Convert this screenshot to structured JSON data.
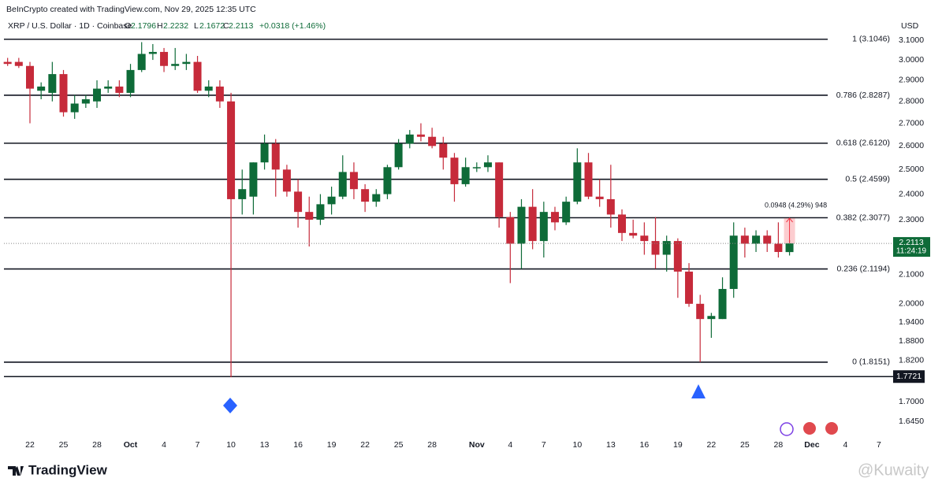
{
  "chart_data": {
    "type": "candlestick",
    "credit": "BeInCrypto created with TradingView.com, Nov 29, 2025 12:35 UTC",
    "symbol": "XRP / U.S. Dollar · 1D · Coinbase",
    "ohlc_labels": [
      "O",
      "H",
      "L",
      "C"
    ],
    "change": "+0.0318 (+1.46%)",
    "currency": "USD",
    "categories": [
      null,
      null,
      "22",
      null,
      null,
      "25",
      null,
      null,
      "28",
      null,
      null,
      "Oct",
      null,
      null,
      "4",
      null,
      null,
      "7",
      null,
      null,
      "10",
      null,
      null,
      "13",
      null,
      null,
      "16",
      null,
      null,
      "19",
      null,
      null,
      "22",
      null,
      null,
      "25",
      null,
      null,
      "28",
      null,
      null,
      null,
      "Nov",
      null,
      null,
      "4",
      null,
      null,
      "7",
      null,
      null,
      "10",
      null,
      null,
      "13",
      null,
      null,
      "16",
      null,
      null,
      "19",
      null,
      null,
      "22",
      null,
      null,
      "25",
      null,
      null,
      "28",
      null,
      null,
      "Dec",
      null,
      null,
      "4",
      null,
      null,
      "7"
    ],
    "open": [
      2.99,
      2.99,
      2.97,
      2.85,
      2.84,
      2.93,
      2.75,
      2.79,
      2.8,
      2.86,
      2.87,
      2.84,
      2.95,
      3.03,
      3.04,
      2.97,
      2.98,
      2.99,
      2.85,
      2.87,
      2.8,
      2.38,
      2.39,
      2.53,
      2.61,
      2.5,
      2.41,
      2.33,
      2.3,
      2.36,
      2.39,
      2.49,
      2.42,
      2.37,
      2.4,
      2.51,
      2.61,
      2.65,
      2.64,
      2.61,
      2.55,
      2.44,
      2.51,
      2.51,
      2.53,
      2.31,
      2.21,
      2.35,
      2.22,
      2.33,
      2.29,
      2.37,
      2.53,
      2.39,
      2.38,
      2.32,
      2.25,
      2.24,
      2.22,
      2.17,
      2.22,
      2.11,
      2.0,
      1.95,
      1.95,
      2.05,
      2.24,
      2.21,
      2.24,
      2.21,
      2.1796,
      null,
      null,
      null,
      null,
      null,
      null,
      null,
      null
    ],
    "high": [
      3.01,
      3.01,
      2.99,
      2.89,
      2.99,
      2.95,
      2.83,
      2.83,
      2.9,
      2.9,
      2.9,
      2.98,
      3.09,
      3.08,
      3.06,
      3.06,
      3.03,
      3.02,
      2.9,
      2.9,
      2.84,
      2.5,
      2.53,
      2.65,
      2.63,
      2.52,
      2.46,
      2.39,
      2.4,
      2.43,
      2.56,
      2.53,
      2.44,
      2.42,
      2.52,
      2.63,
      2.67,
      2.7,
      2.68,
      2.64,
      2.57,
      2.55,
      2.53,
      2.56,
      2.53,
      2.33,
      2.38,
      2.42,
      2.37,
      2.35,
      2.39,
      2.59,
      2.57,
      2.46,
      2.52,
      2.34,
      2.3,
      2.29,
      2.31,
      2.24,
      2.23,
      2.14,
      2.03,
      1.97,
      2.09,
      2.29,
      2.27,
      2.26,
      2.26,
      2.29,
      2.2232,
      null,
      null,
      null,
      null,
      null,
      null,
      null,
      null
    ],
    "low": [
      2.97,
      2.96,
      2.7,
      2.81,
      2.8,
      2.73,
      2.72,
      2.77,
      2.77,
      2.84,
      2.82,
      2.82,
      2.94,
      3.0,
      2.94,
      2.95,
      2.95,
      2.84,
      2.82,
      2.77,
      1.77,
      2.32,
      2.32,
      2.5,
      2.39,
      2.39,
      2.27,
      2.2,
      2.28,
      2.32,
      2.38,
      2.38,
      2.33,
      2.35,
      2.38,
      2.5,
      2.59,
      2.62,
      2.59,
      2.5,
      2.37,
      2.43,
      2.49,
      2.49,
      2.27,
      2.07,
      2.12,
      2.19,
      2.16,
      2.26,
      2.28,
      2.36,
      2.38,
      2.35,
      2.27,
      2.22,
      2.23,
      2.17,
      2.12,
      2.11,
      2.02,
      1.99,
      1.815,
      1.89,
      1.95,
      2.02,
      2.16,
      2.18,
      2.18,
      2.16,
      2.1672,
      null,
      null,
      null,
      null,
      null,
      null,
      null,
      null
    ],
    "close": [
      2.98,
      2.97,
      2.86,
      2.87,
      2.93,
      2.75,
      2.79,
      2.81,
      2.86,
      2.87,
      2.84,
      2.95,
      3.03,
      3.04,
      2.97,
      2.98,
      2.99,
      2.85,
      2.87,
      2.8,
      2.38,
      2.42,
      2.53,
      2.61,
      2.5,
      2.41,
      2.33,
      2.3,
      2.36,
      2.39,
      2.49,
      2.42,
      2.37,
      2.4,
      2.51,
      2.61,
      2.65,
      2.64,
      2.6,
      2.55,
      2.44,
      2.51,
      2.51,
      2.53,
      2.31,
      2.21,
      2.35,
      2.22,
      2.33,
      2.29,
      2.37,
      2.53,
      2.39,
      2.38,
      2.32,
      2.25,
      2.24,
      2.22,
      2.17,
      2.22,
      2.11,
      2.0,
      1.95,
      1.96,
      2.05,
      2.24,
      2.21,
      2.24,
      2.21,
      2.18,
      2.2113,
      null,
      null,
      null,
      null,
      null,
      null,
      null,
      null
    ],
    "up_color": "#0e6b38",
    "down_color": "#c62a3a",
    "log_scale": true,
    "grid": false,
    "ylim": [
      1.609,
      3.22
    ],
    "yticks": [
      {
        "value": 3.1,
        "label": "3.1000"
      },
      {
        "value": 3.0,
        "label": "3.0000"
      },
      {
        "value": 2.9,
        "label": "2.9000"
      },
      {
        "value": 2.8,
        "label": "2.8000"
      },
      {
        "value": 2.7,
        "label": "2.7000"
      },
      {
        "value": 2.6,
        "label": "2.6000"
      },
      {
        "value": 2.5,
        "label": "2.5000"
      },
      {
        "value": 2.4,
        "label": "2.4000"
      },
      {
        "value": 2.3,
        "label": "2.3000"
      },
      {
        "value": 2.1,
        "label": "2.1000"
      },
      {
        "value": 2.0,
        "label": "2.0000"
      },
      {
        "value": 1.94,
        "label": "1.9400"
      },
      {
        "value": 1.88,
        "label": "1.8800"
      },
      {
        "value": 1.82,
        "label": "1.8200"
      },
      {
        "value": 1.7,
        "label": "1.7000"
      },
      {
        "value": 1.645,
        "label": "1.6450"
      }
    ],
    "fib_levels": [
      {
        "value": 3.1046,
        "label": "1 (3.1046)"
      },
      {
        "value": 2.8287,
        "label": "0.786 (2.8287)"
      },
      {
        "value": 2.612,
        "label": "0.618 (2.6120)"
      },
      {
        "value": 2.4599,
        "label": "0.5 (2.4599)"
      },
      {
        "value": 2.3077,
        "label": "0.382 (2.3077)"
      },
      {
        "value": 2.1194,
        "label": "0.236 (2.1194)"
      },
      {
        "value": 1.8151,
        "label": "0 (1.8151)"
      }
    ],
    "price_line": 1.7721,
    "countdown": "11:24:19",
    "measure": {
      "from": 2.2113,
      "to": 2.3061,
      "label": "0.0948 (4.29%) 948"
    },
    "logo": "TradingView",
    "watermark": "@Kuwaity"
  }
}
